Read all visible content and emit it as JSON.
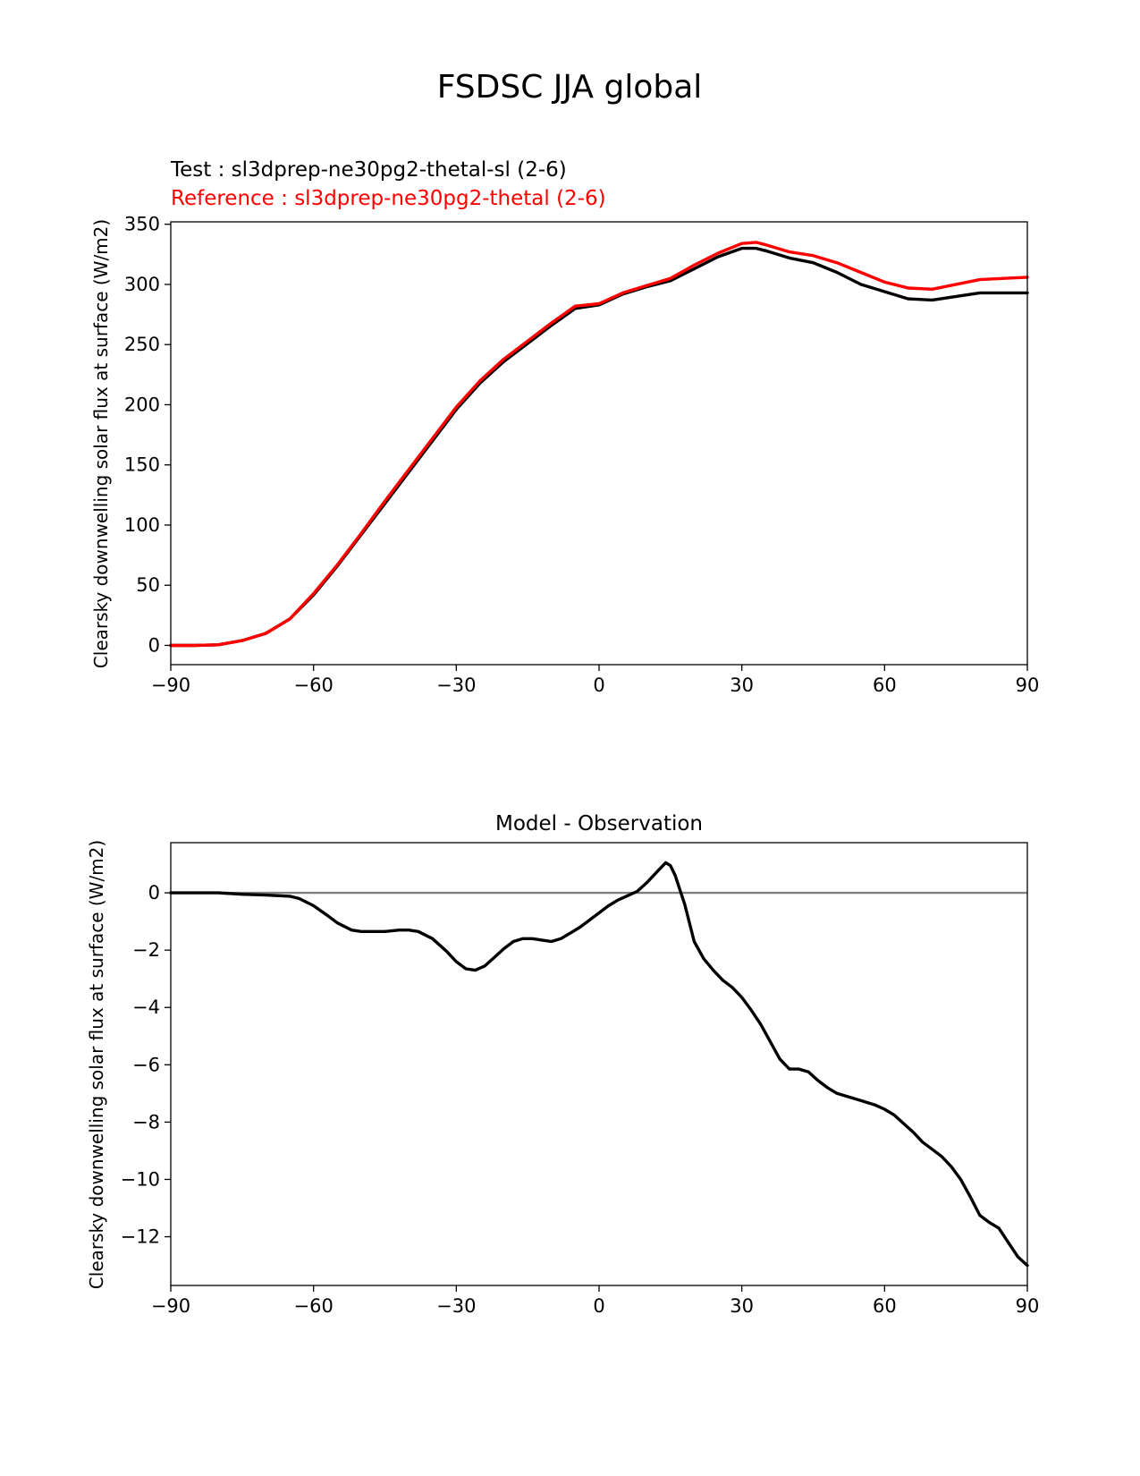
{
  "title": "FSDSC JJA global",
  "colors": {
    "test": "#000000",
    "reference": "#ff0000",
    "zero_line": "#808080"
  },
  "chart_data": [
    {
      "type": "line",
      "subtitle_test": "Test : sl3dprep-ne30pg2-thetal-sl (2-6)",
      "subtitle_reference": "Reference : sl3dprep-ne30pg2-thetal (2-6)",
      "ylabel": "Clearsky downwelling solar flux at surface (W/m2)",
      "xlabel": "",
      "xlim": [
        -90,
        90
      ],
      "ylim": [
        -16,
        352
      ],
      "xticks": [
        -90,
        -60,
        -30,
        0,
        30,
        60,
        90
      ],
      "xtick_labels": [
        "−90",
        "−60",
        "−30",
        "0",
        "30",
        "60",
        "90"
      ],
      "yticks": [
        0,
        50,
        100,
        150,
        200,
        250,
        300,
        350
      ],
      "ytick_labels": [
        "0",
        "50",
        "100",
        "150",
        "200",
        "250",
        "300",
        "350"
      ],
      "grid": false,
      "series": [
        {
          "role": "test",
          "x": [
            -90,
            -85,
            -80,
            -75,
            -70,
            -65,
            -60,
            -55,
            -50,
            -45,
            -40,
            -35,
            -30,
            -25,
            -20,
            -15,
            -10,
            -5,
            0,
            5,
            10,
            15,
            20,
            25,
            30,
            33,
            35,
            40,
            45,
            50,
            55,
            60,
            65,
            70,
            75,
            80,
            85,
            90
          ],
          "y": [
            0,
            0,
            0.5,
            4,
            10,
            22,
            42,
            66,
            92,
            118,
            144,
            170,
            196,
            218,
            236,
            251,
            266,
            280,
            283,
            292,
            298,
            303,
            313,
            323,
            330,
            330,
            328,
            322,
            318,
            310,
            300,
            294,
            288,
            287,
            290,
            293,
            293,
            293
          ]
        },
        {
          "role": "reference",
          "x": [
            -90,
            -85,
            -80,
            -75,
            -70,
            -65,
            -60,
            -55,
            -50,
            -45,
            -40,
            -35,
            -30,
            -25,
            -20,
            -15,
            -10,
            -5,
            0,
            5,
            10,
            15,
            20,
            25,
            30,
            33,
            35,
            40,
            45,
            50,
            55,
            60,
            65,
            70,
            75,
            80,
            85,
            90
          ],
          "y": [
            0,
            0,
            0.5,
            4,
            10,
            22,
            43,
            67,
            93,
            120,
            146,
            172,
            198,
            220,
            238,
            253,
            268,
            282,
            284,
            293,
            299,
            305,
            316,
            326,
            334,
            335,
            333,
            327,
            324,
            318,
            310,
            302,
            297,
            296,
            300,
            304,
            305,
            306
          ]
        }
      ]
    },
    {
      "type": "line",
      "title": "Model - Observation",
      "ylabel": "Clearsky downwelling solar flux at surface (W/m2)",
      "xlabel": "",
      "xlim": [
        -90,
        90
      ],
      "ylim": [
        -13.7,
        1.75
      ],
      "xticks": [
        -90,
        -60,
        -30,
        0,
        30,
        60,
        90
      ],
      "xtick_labels": [
        "−90",
        "−60",
        "−30",
        "0",
        "30",
        "60",
        "90"
      ],
      "yticks": [
        0,
        -2,
        -4,
        -6,
        -8,
        -10,
        -12
      ],
      "ytick_labels": [
        "0",
        "−2",
        "−4",
        "−6",
        "−8",
        "−10",
        "−12"
      ],
      "grid": false,
      "zero_line": true,
      "series": [
        {
          "role": "difference",
          "x": [
            -90,
            -85,
            -80,
            -75,
            -70,
            -65,
            -63,
            -60,
            -57,
            -55,
            -52,
            -50,
            -47,
            -45,
            -42,
            -40,
            -38,
            -35,
            -32,
            -30,
            -28,
            -26,
            -24,
            -22,
            -20,
            -18,
            -16,
            -14,
            -12,
            -10,
            -8,
            -6,
            -4,
            -2,
            0,
            2,
            4,
            6,
            8,
            10,
            12,
            14,
            15,
            16,
            17,
            18,
            20,
            22,
            24,
            26,
            28,
            30,
            32,
            34,
            36,
            38,
            40,
            42,
            44,
            46,
            48,
            50,
            52,
            55,
            58,
            60,
            62,
            64,
            66,
            68,
            70,
            72,
            74,
            76,
            78,
            80,
            82,
            84,
            86,
            88,
            90
          ],
          "y": [
            0,
            0,
            0,
            -0.05,
            -0.08,
            -0.12,
            -0.2,
            -0.45,
            -0.8,
            -1.05,
            -1.3,
            -1.35,
            -1.35,
            -1.35,
            -1.3,
            -1.3,
            -1.35,
            -1.6,
            -2.05,
            -2.4,
            -2.65,
            -2.7,
            -2.55,
            -2.25,
            -1.95,
            -1.7,
            -1.6,
            -1.6,
            -1.65,
            -1.7,
            -1.6,
            -1.4,
            -1.2,
            -0.95,
            -0.7,
            -0.45,
            -0.25,
            -0.1,
            0.05,
            0.35,
            0.7,
            1.05,
            0.95,
            0.6,
            0.1,
            -0.4,
            -1.7,
            -2.3,
            -2.7,
            -3.05,
            -3.3,
            -3.65,
            -4.1,
            -4.6,
            -5.2,
            -5.8,
            -6.15,
            -6.15,
            -6.25,
            -6.55,
            -6.8,
            -7.0,
            -7.1,
            -7.25,
            -7.4,
            -7.55,
            -7.75,
            -8.05,
            -8.35,
            -8.7,
            -8.95,
            -9.2,
            -9.55,
            -10.0,
            -10.6,
            -11.25,
            -11.5,
            -11.7,
            -12.2,
            -12.7,
            -13.0
          ]
        }
      ]
    }
  ]
}
